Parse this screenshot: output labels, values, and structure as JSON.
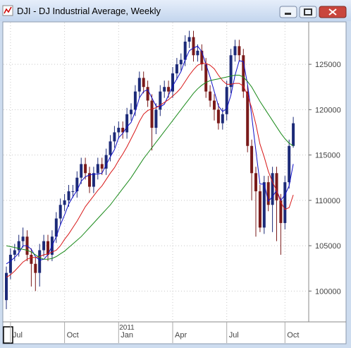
{
  "window": {
    "title": "DJI - DJ Industrial Average, Weekly"
  },
  "chart_data": {
    "type": "candlestick",
    "year_label": "2011",
    "categories": [
      null,
      "Jul",
      null,
      null,
      null,
      null,
      null,
      null,
      null,
      null,
      null,
      null,
      null,
      null,
      "Oct",
      null,
      null,
      null,
      null,
      null,
      null,
      null,
      null,
      null,
      null,
      null,
      null,
      "Jan",
      null,
      null,
      null,
      null,
      null,
      null,
      null,
      null,
      null,
      null,
      null,
      null,
      "Apr",
      null,
      null,
      null,
      null,
      null,
      null,
      null,
      null,
      null,
      null,
      null,
      null,
      "Jul",
      null,
      null,
      null,
      null,
      null,
      null,
      null,
      null,
      null,
      null,
      null,
      null,
      null,
      "Oct",
      null,
      null
    ],
    "open": [
      99000,
      102000,
      104000,
      104500,
      105500,
      106000,
      104000,
      103000,
      102000,
      104500,
      105500,
      104000,
      106000,
      108000,
      109500,
      110000,
      111000,
      111000,
      112500,
      114000,
      113000,
      111500,
      113000,
      114000,
      113500,
      115000,
      116500,
      117500,
      118000,
      117500,
      119500,
      120000,
      122000,
      123500,
      122500,
      121000,
      118000,
      120000,
      122000,
      122500,
      122000,
      124000,
      125000,
      125500,
      127500,
      128000,
      126000,
      126500,
      125000,
      122000,
      121000,
      120000,
      118500,
      119500,
      122500,
      126000,
      127000,
      126000,
      122000,
      116000,
      113000,
      111000,
      107000,
      112000,
      109500,
      113000,
      110000,
      107500,
      112000,
      116000
    ],
    "high": [
      102700,
      104700,
      105200,
      106200,
      107000,
      106700,
      104700,
      103700,
      105200,
      106200,
      106200,
      106700,
      108700,
      110200,
      110700,
      111700,
      111700,
      113200,
      114700,
      114700,
      113700,
      113700,
      114700,
      114700,
      115700,
      117200,
      118200,
      118700,
      118700,
      120200,
      120700,
      122700,
      124200,
      124200,
      123200,
      121700,
      120700,
      122700,
      123200,
      123200,
      124700,
      125700,
      126200,
      128200,
      128700,
      128700,
      127200,
      127200,
      125700,
      122700,
      121700,
      120700,
      120200,
      123200,
      126700,
      127700,
      127700,
      126700,
      122700,
      116700,
      113700,
      111700,
      112700,
      112700,
      113700,
      113700,
      110700,
      112700,
      116700,
      119200
    ],
    "low": [
      98000,
      101300,
      103300,
      103800,
      104800,
      103300,
      100500,
      100000,
      100500,
      103800,
      103300,
      103300,
      105300,
      107300,
      108800,
      109300,
      110300,
      110300,
      111800,
      112300,
      110800,
      110800,
      112300,
      112800,
      112800,
      114300,
      115800,
      116800,
      116800,
      116800,
      118800,
      119300,
      121300,
      121800,
      120300,
      115500,
      117300,
      119300,
      121300,
      121300,
      121300,
      123300,
      124300,
      124800,
      126800,
      125300,
      125300,
      124300,
      121300,
      120300,
      118800,
      117800,
      117800,
      118800,
      121800,
      125300,
      125300,
      121300,
      115300,
      110000,
      106000,
      106500,
      106300,
      108800,
      106500,
      105500,
      104000,
      106800,
      111300,
      115800
    ],
    "close": [
      102000,
      104000,
      104500,
      105500,
      106000,
      104000,
      103000,
      102000,
      104500,
      105500,
      104000,
      106000,
      108000,
      109500,
      110000,
      111000,
      111000,
      112500,
      114000,
      113000,
      111500,
      113000,
      114000,
      113500,
      115000,
      116500,
      117500,
      118000,
      117500,
      119500,
      120000,
      122000,
      123500,
      122500,
      121000,
      118000,
      120000,
      122000,
      122500,
      122000,
      124000,
      125000,
      125500,
      127500,
      128000,
      126000,
      126500,
      125000,
      122000,
      121000,
      120000,
      118500,
      119500,
      122500,
      126000,
      127000,
      126000,
      122000,
      116000,
      113000,
      111000,
      107000,
      112000,
      109500,
      113000,
      110000,
      107500,
      112000,
      116000,
      118500
    ],
    "up_color": "#1c2a78",
    "down_color": "#7a1a1a",
    "series": [
      {
        "color": "#1010c8",
        "values": [
          103000,
          103300,
          103700,
          104200,
          105000,
          105000,
          104600,
          103800,
          103400,
          103500,
          104000,
          105000,
          106000,
          107300,
          108400,
          109600,
          110400,
          111100,
          112100,
          112600,
          112800,
          112900,
          112900,
          113000,
          113900,
          114800,
          115600,
          116900,
          117400,
          118100,
          118600,
          119800,
          121300,
          122000,
          122200,
          121300,
          120400,
          120300,
          120600,
          121600,
          122600,
          123400,
          124200,
          125500,
          126500,
          126800,
          127000,
          126400,
          125000,
          123600,
          122000,
          120400,
          119800,
          120100,
          121600,
          123800,
          125400,
          125300,
          122800,
          119300,
          115500,
          111800,
          111800,
          109900,
          110400,
          111100,
          110000,
          110600,
          111600,
          114000
        ]
      },
      {
        "color": "#d81818",
        "values": [
          101500,
          101800,
          102200,
          102700,
          103200,
          103500,
          103700,
          103700,
          103800,
          104000,
          104100,
          104300,
          104500,
          105000,
          105700,
          106300,
          107000,
          107700,
          108500,
          109300,
          109900,
          110500,
          111100,
          111600,
          112300,
          113000,
          113600,
          114400,
          115100,
          115900,
          116800,
          117700,
          118700,
          119500,
          119900,
          120100,
          120200,
          120500,
          120800,
          121100,
          121500,
          121900,
          122400,
          123100,
          123800,
          124400,
          124900,
          125100,
          125100,
          124900,
          124500,
          123800,
          123200,
          122800,
          122800,
          122900,
          122900,
          122600,
          121600,
          120200,
          118400,
          116200,
          114800,
          113200,
          112000,
          111100,
          109800,
          109000,
          109200,
          110600
        ]
      },
      {
        "color": "#1a8a1a",
        "values": [
          105000,
          104900,
          104800,
          104700,
          104600,
          104500,
          104300,
          104000,
          103700,
          103500,
          103500,
          103600,
          103800,
          104100,
          104400,
          104800,
          105200,
          105600,
          106000,
          106500,
          107000,
          107500,
          108000,
          108500,
          109000,
          109500,
          110100,
          110700,
          111300,
          111900,
          112500,
          113200,
          113900,
          114600,
          115200,
          115800,
          116400,
          117000,
          117600,
          118200,
          118800,
          119400,
          120000,
          120600,
          121200,
          121800,
          122300,
          122700,
          123000,
          123200,
          123300,
          123400,
          123500,
          123600,
          123700,
          123800,
          123800,
          123600,
          123100,
          122500,
          121700,
          120900,
          120200,
          119500,
          118800,
          118100,
          117400,
          116800,
          116300,
          116000
        ]
      }
    ],
    "ylim": [
      96600,
      129600
    ],
    "yticks": [
      100000,
      105000,
      110000,
      115000,
      120000,
      125000
    ],
    "grid": true,
    "y_axis_side": "right"
  }
}
